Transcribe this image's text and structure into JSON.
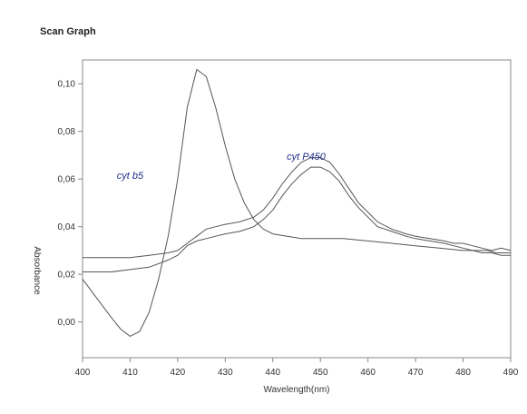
{
  "page": {
    "title": "Scan Graph"
  },
  "chart_data": {
    "type": "line",
    "xlabel": "Wavelength(nm)",
    "ylabel": "Absorbance",
    "xlim": [
      400,
      490
    ],
    "ylim": [
      -0.015,
      0.11
    ],
    "x_ticks": [
      400,
      410,
      420,
      430,
      440,
      450,
      460,
      470,
      480,
      490
    ],
    "y_ticks": [
      "0,00",
      "0,02",
      "0,04",
      "0,06",
      "0,08",
      "0,10"
    ],
    "y_tick_values": [
      0.0,
      0.02,
      0.04,
      0.06,
      0.08,
      0.1
    ],
    "grid": false,
    "annotations": [
      {
        "text": "cyt b5",
        "x": 410,
        "y": 0.06
      },
      {
        "text": "cyt P450",
        "x": 447,
        "y": 0.068
      }
    ],
    "series": [
      {
        "color": "#555555",
        "points": [
          [
            400,
            0.018
          ],
          [
            403,
            0.01
          ],
          [
            406,
            0.002
          ],
          [
            408,
            -0.003
          ],
          [
            410,
            -0.006
          ],
          [
            412,
            -0.004
          ],
          [
            414,
            0.004
          ],
          [
            416,
            0.018
          ],
          [
            418,
            0.036
          ],
          [
            420,
            0.06
          ],
          [
            422,
            0.09
          ],
          [
            424,
            0.106
          ],
          [
            426,
            0.103
          ],
          [
            428,
            0.09
          ],
          [
            430,
            0.074
          ],
          [
            432,
            0.06
          ],
          [
            434,
            0.05
          ],
          [
            436,
            0.043
          ],
          [
            438,
            0.039
          ],
          [
            440,
            0.037
          ],
          [
            443,
            0.036
          ],
          [
            446,
            0.035
          ],
          [
            450,
            0.035
          ],
          [
            455,
            0.035
          ],
          [
            460,
            0.034
          ],
          [
            465,
            0.033
          ],
          [
            470,
            0.032
          ],
          [
            475,
            0.031
          ],
          [
            480,
            0.03
          ],
          [
            485,
            0.03
          ],
          [
            487,
            0.029
          ],
          [
            490,
            0.029
          ]
        ]
      },
      {
        "color": "#555555",
        "points": [
          [
            400,
            0.027
          ],
          [
            403,
            0.027
          ],
          [
            406,
            0.027
          ],
          [
            410,
            0.027
          ],
          [
            414,
            0.028
          ],
          [
            418,
            0.029
          ],
          [
            420,
            0.03
          ],
          [
            422,
            0.033
          ],
          [
            424,
            0.036
          ],
          [
            426,
            0.039
          ],
          [
            428,
            0.04
          ],
          [
            430,
            0.041
          ],
          [
            433,
            0.042
          ],
          [
            436,
            0.044
          ],
          [
            438,
            0.047
          ],
          [
            440,
            0.052
          ],
          [
            442,
            0.058
          ],
          [
            444,
            0.063
          ],
          [
            446,
            0.067
          ],
          [
            448,
            0.069
          ],
          [
            450,
            0.069
          ],
          [
            452,
            0.067
          ],
          [
            454,
            0.062
          ],
          [
            456,
            0.056
          ],
          [
            458,
            0.05
          ],
          [
            460,
            0.046
          ],
          [
            462,
            0.042
          ],
          [
            465,
            0.039
          ],
          [
            468,
            0.037
          ],
          [
            470,
            0.036
          ],
          [
            473,
            0.035
          ],
          [
            476,
            0.034
          ],
          [
            478,
            0.033
          ],
          [
            480,
            0.033
          ],
          [
            482,
            0.032
          ],
          [
            484,
            0.031
          ],
          [
            486,
            0.03
          ],
          [
            488,
            0.031
          ],
          [
            490,
            0.03
          ]
        ]
      },
      {
        "color": "#555555",
        "points": [
          [
            400,
            0.021
          ],
          [
            403,
            0.021
          ],
          [
            406,
            0.021
          ],
          [
            410,
            0.022
          ],
          [
            414,
            0.023
          ],
          [
            418,
            0.026
          ],
          [
            420,
            0.028
          ],
          [
            422,
            0.032
          ],
          [
            424,
            0.034
          ],
          [
            426,
            0.035
          ],
          [
            428,
            0.036
          ],
          [
            430,
            0.037
          ],
          [
            433,
            0.038
          ],
          [
            436,
            0.04
          ],
          [
            438,
            0.043
          ],
          [
            440,
            0.047
          ],
          [
            442,
            0.053
          ],
          [
            444,
            0.058
          ],
          [
            446,
            0.062
          ],
          [
            448,
            0.065
          ],
          [
            450,
            0.065
          ],
          [
            452,
            0.063
          ],
          [
            454,
            0.059
          ],
          [
            456,
            0.053
          ],
          [
            458,
            0.048
          ],
          [
            460,
            0.044
          ],
          [
            462,
            0.04
          ],
          [
            465,
            0.038
          ],
          [
            468,
            0.036
          ],
          [
            470,
            0.035
          ],
          [
            473,
            0.034
          ],
          [
            476,
            0.033
          ],
          [
            478,
            0.032
          ],
          [
            480,
            0.031
          ],
          [
            482,
            0.03
          ],
          [
            484,
            0.029
          ],
          [
            486,
            0.029
          ],
          [
            488,
            0.028
          ],
          [
            490,
            0.028
          ]
        ]
      }
    ]
  }
}
